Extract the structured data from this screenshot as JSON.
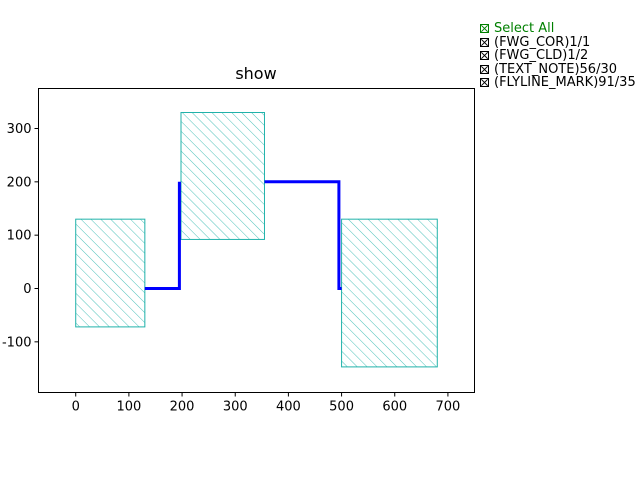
{
  "chart_data": {
    "type": "shapes",
    "title": "show",
    "xlabel": "",
    "ylabel": "",
    "xlim": [
      -70,
      750
    ],
    "ylim": [
      -195,
      375
    ],
    "xticks": [
      0,
      100,
      200,
      300,
      400,
      500,
      600,
      700
    ],
    "yticks": [
      -100,
      0,
      100,
      200,
      300
    ],
    "grid": false,
    "colors": {
      "rect_edge": "#20b2aa",
      "rect_hatch": "#20b2aa",
      "flyline": "#0000ff",
      "select_all": "#008000"
    },
    "rectangles": [
      {
        "x0": 0,
        "y0": -72,
        "x1": 130,
        "y1": 130
      },
      {
        "x0": 198,
        "y0": 92,
        "x1": 355,
        "y1": 330
      },
      {
        "x0": 500,
        "y0": -147,
        "x1": 680,
        "y1": 130
      }
    ],
    "flylines": [
      {
        "points": [
          [
            130,
            0
          ],
          [
            195,
            0
          ],
          [
            195,
            200
          ]
        ]
      },
      {
        "points": [
          [
            355,
            200
          ],
          [
            495,
            200
          ],
          [
            495,
            0
          ],
          [
            500,
            0
          ]
        ]
      }
    ]
  },
  "legend": {
    "items": [
      {
        "label": "Select All",
        "checked": true
      },
      {
        "label": "(FWG_COR)1/1",
        "checked": true
      },
      {
        "label": "(FWG_CLD)1/2",
        "checked": true
      },
      {
        "label": "(TEXT_NOTE)56/30",
        "checked": true
      },
      {
        "label": "(FLYLINE_MARK)91/35",
        "checked": true
      }
    ]
  }
}
